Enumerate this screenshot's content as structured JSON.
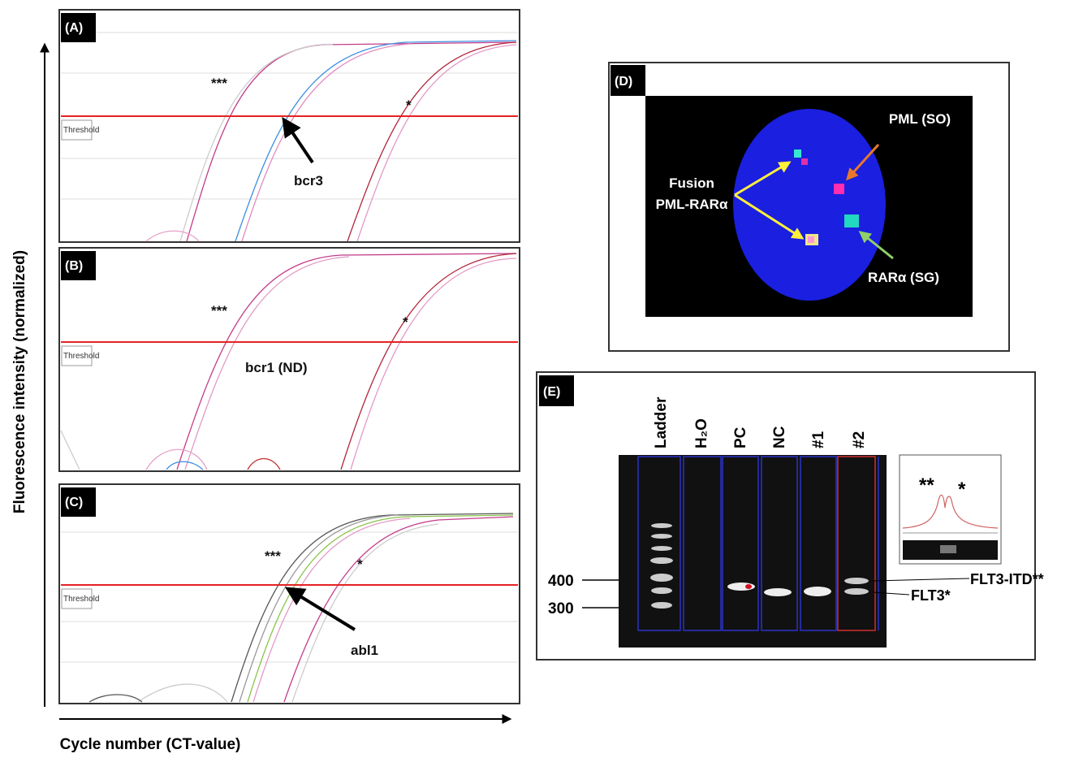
{
  "axes": {
    "y_label": "Fluorescence intensity (normalized)",
    "x_label": "Cycle number (CT-value)"
  },
  "panels": [
    {
      "label": "(A)",
      "threshold": "Threshold",
      "high": "***",
      "low": "*",
      "target": "bcr3"
    },
    {
      "label": "(B)",
      "threshold": "Threshold",
      "high": "***",
      "low": "*",
      "target": "bcr1 (ND)"
    },
    {
      "label": "(C)",
      "threshold": "Threshold",
      "high": "***",
      "low": "*",
      "target": "abl1"
    },
    {
      "label": "(D)",
      "signals": [
        "PML (SO)",
        "Fusion",
        "PML-RARα",
        "RARα (SG)"
      ]
    },
    {
      "label": "(E)",
      "lanes": [
        "Ladder",
        "H₂O",
        "PC",
        "NC",
        "#1",
        "#2"
      ],
      "markers": [
        "400",
        "300"
      ],
      "bands": [
        "FLT3-ITD**",
        "FLT3*"
      ],
      "inset": [
        "**",
        "*"
      ]
    }
  ]
}
